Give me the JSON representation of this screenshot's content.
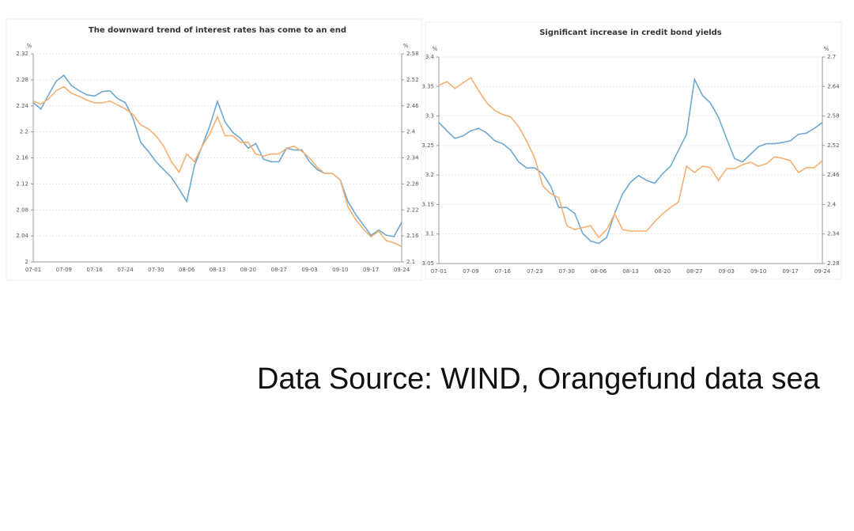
{
  "chart_data": [
    {
      "type": "line",
      "title": "The downward trend of interest rates has come to an end",
      "y_unit": "%",
      "y2_unit": "%",
      "categories": [
        "07-01",
        null,
        null,
        null,
        "07-09",
        null,
        null,
        null,
        "07-16",
        null,
        null,
        null,
        "07-24",
        null,
        null,
        null,
        "07-30",
        null,
        null,
        null,
        "08-06",
        null,
        null,
        null,
        "08-13",
        null,
        null,
        null,
        "08-20",
        null,
        null,
        null,
        "08-27",
        null,
        null,
        null,
        "09-03",
        null,
        null,
        null,
        "09-10",
        null,
        null,
        null,
        "09-17",
        null,
        null,
        null,
        "09-24"
      ],
      "ylim": [
        2,
        2.32
      ],
      "yticks": [
        2,
        2.04,
        2.08,
        2.12,
        2.16,
        2.2,
        2.24,
        2.28,
        2.32
      ],
      "y2lim": [
        2.1,
        2.58
      ],
      "y2ticks": [
        2.1,
        2.16,
        2.22,
        2.28,
        2.34,
        2.4,
        2.46,
        2.52,
        2.58
      ],
      "grid": true,
      "series": [
        {
          "color": "#6fa8d0",
          "values": [
            2.245,
            2.235,
            2.257,
            2.278,
            2.287,
            2.271,
            2.263,
            2.257,
            2.255,
            2.262,
            2.263,
            2.251,
            2.245,
            2.221,
            2.184,
            2.17,
            2.154,
            2.142,
            2.13,
            2.112,
            2.093,
            2.148,
            2.178,
            2.209,
            2.247,
            2.215,
            2.199,
            2.19,
            2.175,
            2.182,
            2.158,
            2.154,
            2.154,
            2.175,
            2.172,
            2.172,
            2.154,
            2.142,
            2.136,
            2.136,
            2.126,
            2.093,
            2.073,
            2.057,
            2.041,
            2.049,
            2.041,
            2.039,
            2.061
          ]
        },
        {
          "color": "#f5b070",
          "axis": "y2",
          "values": [
            2.471,
            2.464,
            2.476,
            2.495,
            2.504,
            2.489,
            2.482,
            2.473,
            2.467,
            2.467,
            2.471,
            2.462,
            2.453,
            2.44,
            2.416,
            2.407,
            2.391,
            2.367,
            2.331,
            2.307,
            2.349,
            2.331,
            2.367,
            2.395,
            2.435,
            2.391,
            2.391,
            2.376,
            2.376,
            2.349,
            2.344,
            2.349,
            2.349,
            2.362,
            2.367,
            2.355,
            2.34,
            2.318,
            2.304,
            2.304,
            2.289,
            2.227,
            2.198,
            2.176,
            2.158,
            2.171,
            2.149,
            2.144,
            2.136
          ]
        }
      ]
    },
    {
      "type": "line",
      "title": "Significant increase in credit bond yields",
      "y_unit": "%",
      "y2_unit": "%",
      "categories": [
        "07-01",
        null,
        null,
        null,
        "07-09",
        null,
        null,
        null,
        "07-16",
        null,
        null,
        null,
        "07-23",
        null,
        null,
        null,
        "07-30",
        null,
        null,
        null,
        "08-06",
        null,
        null,
        null,
        "08-13",
        null,
        null,
        null,
        "08-20",
        null,
        null,
        null,
        "08-27",
        null,
        null,
        null,
        "09-03",
        null,
        null,
        null,
        "09-10",
        null,
        null,
        null,
        "09-17",
        null,
        null,
        null,
        "09-24"
      ],
      "ylim": [
        3.05,
        3.4
      ],
      "yticks": [
        3.05,
        3.1,
        3.15,
        3.2,
        3.25,
        3.3,
        3.35,
        3.4
      ],
      "y2lim": [
        2.28,
        2.7
      ],
      "y2ticks": [
        2.28,
        2.34,
        2.4,
        2.46,
        2.52,
        2.58,
        2.64,
        2.7
      ],
      "grid": true,
      "series": [
        {
          "color": "#6fa8d0",
          "values": [
            3.289,
            3.275,
            3.262,
            3.266,
            3.275,
            3.279,
            3.271,
            3.258,
            3.253,
            3.242,
            3.222,
            3.212,
            3.212,
            3.202,
            3.181,
            3.145,
            3.145,
            3.135,
            3.101,
            3.088,
            3.084,
            3.094,
            3.135,
            3.168,
            3.188,
            3.199,
            3.191,
            3.186,
            3.202,
            3.215,
            3.242,
            3.269,
            3.362,
            3.335,
            3.322,
            3.298,
            3.262,
            3.228,
            3.222,
            3.235,
            3.248,
            3.253,
            3.253,
            3.255,
            3.258,
            3.269,
            3.271,
            3.279,
            3.289
          ]
        },
        {
          "color": "#f5b070",
          "axis": "y2",
          "values": [
            2.642,
            2.65,
            2.636,
            2.647,
            2.658,
            2.631,
            2.607,
            2.591,
            2.583,
            2.578,
            2.558,
            2.529,
            2.494,
            2.438,
            2.422,
            2.414,
            2.357,
            2.349,
            2.353,
            2.357,
            2.333,
            2.349,
            2.381,
            2.349,
            2.346,
            2.346,
            2.346,
            2.365,
            2.381,
            2.394,
            2.405,
            2.478,
            2.465,
            2.478,
            2.475,
            2.449,
            2.473,
            2.473,
            2.481,
            2.486,
            2.478,
            2.483,
            2.497,
            2.494,
            2.489,
            2.465,
            2.475,
            2.475,
            2.489
          ]
        }
      ]
    }
  ],
  "source": "Data Source: WIND, Orangefund data sea"
}
